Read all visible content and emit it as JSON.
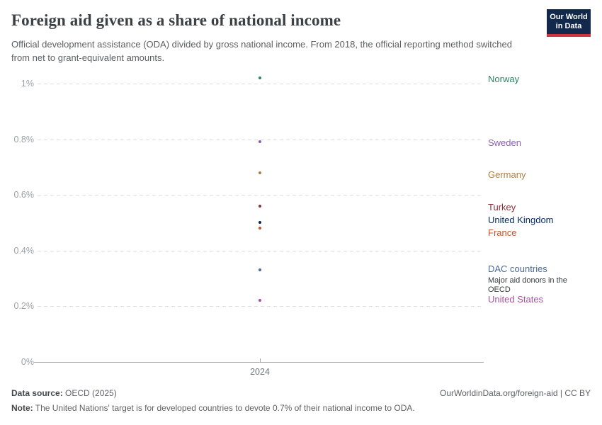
{
  "header": {
    "title": "Foreign aid given as a share of national income",
    "subtitle": "Official development assistance (ODA) divided by gross national income. From 2018, the official reporting method switched from net to grant-equivalent amounts.",
    "logo": {
      "line1": "Our World",
      "line2": "in Data",
      "bg_color": "#12294d",
      "stripe_color": "#d1333c"
    }
  },
  "chart_data": {
    "type": "scatter",
    "title": "Foreign aid given as a share of national income",
    "x": [
      2024
    ],
    "x_tick_label": "2024",
    "xlabel": "",
    "ylabel": "",
    "ylim": [
      0,
      1.05
    ],
    "grid": "dashed-horizontal",
    "legend_position": "right-entity-labels",
    "yticks": [
      {
        "label": "0%",
        "value": 0
      },
      {
        "label": "0.2%",
        "value": 0.2
      },
      {
        "label": "0.4%",
        "value": 0.4
      },
      {
        "label": "0.6%",
        "value": 0.6
      },
      {
        "label": "0.8%",
        "value": 0.8
      },
      {
        "label": "1%",
        "value": 1.0
      }
    ],
    "series": [
      {
        "name": "Norway",
        "year": 2024,
        "value": 1.02,
        "color": "#2c8465",
        "label_dy": 2
      },
      {
        "name": "Sweden",
        "year": 2024,
        "value": 0.79,
        "color": "#8d5cbe",
        "label_dy": 2
      },
      {
        "name": "Germany",
        "year": 2024,
        "value": 0.68,
        "color": "#b07c45",
        "label_dy": 3
      },
      {
        "name": "Turkey",
        "year": 2024,
        "value": 0.56,
        "color": "#8c3039",
        "label_dy": 2
      },
      {
        "name": "United Kingdom",
        "year": 2024,
        "value": 0.5,
        "color": "#00295b",
        "label_dy": -3
      },
      {
        "name": "France",
        "year": 2024,
        "value": 0.48,
        "color": "#c0542c",
        "label_dy": 7
      },
      {
        "name": "DAC countries",
        "year": 2024,
        "value": 0.33,
        "color": "#4c6a9c",
        "label_dy": -1,
        "note": "Major aid donors in the OECD"
      },
      {
        "name": "United States",
        "year": 2024,
        "value": 0.22,
        "color": "#a2559c",
        "label_dy": -1
      }
    ],
    "gridline_color": "#dcdcdc",
    "axis_color": "#a8a8a8"
  },
  "footer": {
    "data_source_label": "Data source:",
    "data_source_value": " OECD (2025)",
    "attribution": "OurWorldinData.org/foreign-aid | CC BY",
    "note_label": "Note:",
    "note_text": " The United Nations' target is for developed countries to devote 0.7% of their national income to ODA."
  }
}
